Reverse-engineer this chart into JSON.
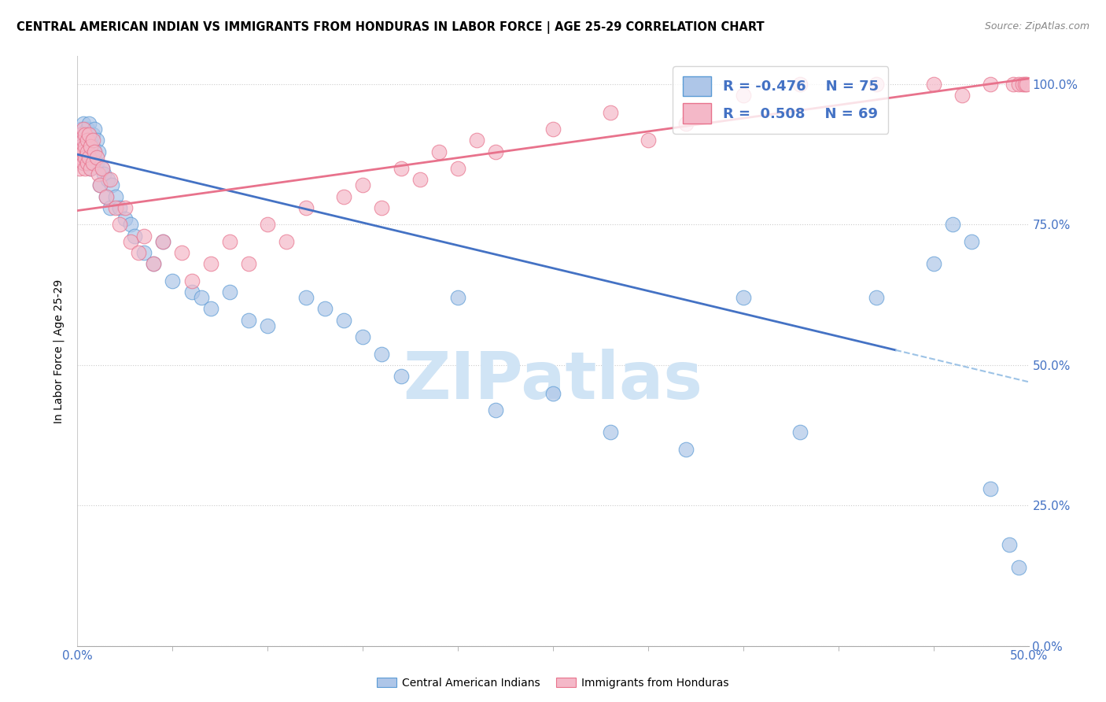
{
  "title": "CENTRAL AMERICAN INDIAN VS IMMIGRANTS FROM HONDURAS IN LABOR FORCE | AGE 25-29 CORRELATION CHART",
  "source": "Source: ZipAtlas.com",
  "ylabel": "In Labor Force | Age 25-29",
  "ytick_labels": [
    "0.0%",
    "25.0%",
    "50.0%",
    "75.0%",
    "100.0%"
  ],
  "ytick_values": [
    0.0,
    0.25,
    0.5,
    0.75,
    1.0
  ],
  "xtick_left_label": "0.0%",
  "xtick_right_label": "50.0%",
  "xlim": [
    0.0,
    0.5
  ],
  "ylim": [
    0.0,
    1.05
  ],
  "legend_r_blue": "-0.476",
  "legend_n_blue": "75",
  "legend_r_pink": "0.508",
  "legend_n_pink": "69",
  "blue_fill_color": "#aec6e8",
  "blue_edge_color": "#5b9bd5",
  "pink_fill_color": "#f4b8c8",
  "pink_edge_color": "#e8728c",
  "trend_blue_solid": "#4472c4",
  "trend_blue_dashed": "#9dc3e6",
  "trend_pink": "#e8728c",
  "watermark_text": "ZIPatlas",
  "watermark_color": "#d0e4f5",
  "label_blue": "Central American Indians",
  "label_pink": "Immigrants from Honduras",
  "blue_x": [
    0.001,
    0.001,
    0.002,
    0.002,
    0.002,
    0.002,
    0.003,
    0.003,
    0.003,
    0.003,
    0.003,
    0.004,
    0.004,
    0.004,
    0.004,
    0.005,
    0.005,
    0.005,
    0.005,
    0.006,
    0.006,
    0.006,
    0.007,
    0.007,
    0.007,
    0.008,
    0.008,
    0.008,
    0.009,
    0.009,
    0.01,
    0.01,
    0.011,
    0.012,
    0.013,
    0.014,
    0.015,
    0.016,
    0.017,
    0.018,
    0.02,
    0.022,
    0.025,
    0.028,
    0.03,
    0.035,
    0.04,
    0.045,
    0.05,
    0.06,
    0.065,
    0.07,
    0.08,
    0.09,
    0.1,
    0.12,
    0.13,
    0.14,
    0.15,
    0.16,
    0.17,
    0.2,
    0.22,
    0.25,
    0.28,
    0.32,
    0.35,
    0.38,
    0.42,
    0.45,
    0.46,
    0.47,
    0.48,
    0.49,
    0.495
  ],
  "blue_y": [
    0.9,
    0.88,
    0.91,
    0.89,
    0.87,
    0.92,
    0.9,
    0.88,
    0.91,
    0.86,
    0.93,
    0.89,
    0.87,
    0.91,
    0.88,
    0.9,
    0.92,
    0.86,
    0.89,
    0.91,
    0.87,
    0.93,
    0.88,
    0.9,
    0.85,
    0.91,
    0.87,
    0.89,
    0.88,
    0.92,
    0.86,
    0.9,
    0.88,
    0.82,
    0.85,
    0.84,
    0.8,
    0.83,
    0.78,
    0.82,
    0.8,
    0.78,
    0.76,
    0.75,
    0.73,
    0.7,
    0.68,
    0.72,
    0.65,
    0.63,
    0.62,
    0.6,
    0.63,
    0.58,
    0.57,
    0.62,
    0.6,
    0.58,
    0.55,
    0.52,
    0.48,
    0.62,
    0.42,
    0.45,
    0.38,
    0.35,
    0.62,
    0.38,
    0.62,
    0.68,
    0.75,
    0.72,
    0.28,
    0.18,
    0.14
  ],
  "pink_x": [
    0.001,
    0.001,
    0.002,
    0.002,
    0.002,
    0.003,
    0.003,
    0.003,
    0.003,
    0.004,
    0.004,
    0.004,
    0.004,
    0.005,
    0.005,
    0.005,
    0.006,
    0.006,
    0.007,
    0.007,
    0.008,
    0.008,
    0.009,
    0.01,
    0.011,
    0.012,
    0.013,
    0.015,
    0.017,
    0.02,
    0.022,
    0.025,
    0.028,
    0.032,
    0.035,
    0.04,
    0.045,
    0.055,
    0.06,
    0.07,
    0.08,
    0.09,
    0.1,
    0.11,
    0.12,
    0.14,
    0.15,
    0.16,
    0.17,
    0.18,
    0.19,
    0.2,
    0.21,
    0.22,
    0.25,
    0.28,
    0.3,
    0.32,
    0.35,
    0.38,
    0.42,
    0.45,
    0.465,
    0.48,
    0.492,
    0.495,
    0.497,
    0.498,
    0.499
  ],
  "pink_y": [
    0.88,
    0.85,
    0.91,
    0.87,
    0.89,
    0.9,
    0.88,
    0.86,
    0.92,
    0.89,
    0.87,
    0.91,
    0.85,
    0.9,
    0.88,
    0.86,
    0.91,
    0.87,
    0.89,
    0.85,
    0.9,
    0.86,
    0.88,
    0.87,
    0.84,
    0.82,
    0.85,
    0.8,
    0.83,
    0.78,
    0.75,
    0.78,
    0.72,
    0.7,
    0.73,
    0.68,
    0.72,
    0.7,
    0.65,
    0.68,
    0.72,
    0.68,
    0.75,
    0.72,
    0.78,
    0.8,
    0.82,
    0.78,
    0.85,
    0.83,
    0.88,
    0.85,
    0.9,
    0.88,
    0.92,
    0.95,
    0.9,
    0.93,
    0.98,
    1.0,
    1.0,
    1.0,
    0.98,
    1.0,
    1.0,
    1.0,
    1.0,
    1.0,
    1.0
  ],
  "blue_trend_x0": 0.0,
  "blue_trend_y0": 0.875,
  "blue_trend_x1": 0.5,
  "blue_trend_y1": 0.47,
  "blue_trend_solid_end": 0.43,
  "pink_trend_x0": 0.0,
  "pink_trend_y0": 0.775,
  "pink_trend_x1": 0.5,
  "pink_trend_y1": 1.01
}
